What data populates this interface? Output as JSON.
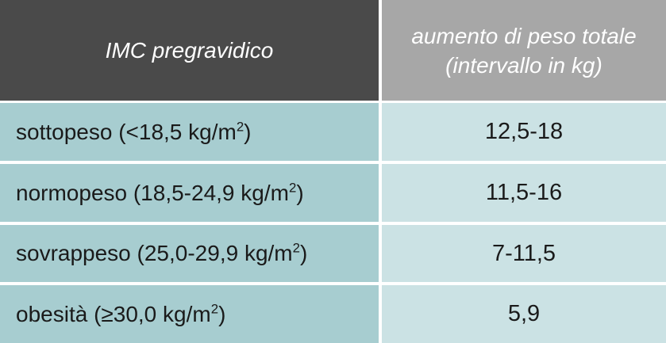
{
  "table": {
    "header": {
      "col1": "IMC pregravidico",
      "col2_line1": "aumento di peso totale",
      "col2_line2": "(intervallo in kg)"
    },
    "rows": [
      {
        "label_pre": "sottopeso (<18,5 kg/m",
        "sup": "2",
        "label_post": ")",
        "value": "12,5-18"
      },
      {
        "label_pre": "normopeso (18,5-24,9 kg/m",
        "sup": "2",
        "label_post": ")",
        "value": "11,5-16"
      },
      {
        "label_pre": "sovrappeso (25,0-29,9 kg/m",
        "sup": "2",
        "label_post": ")",
        "value": "7-11,5"
      },
      {
        "label_pre": "obesità (≥30,0 kg/m",
        "sup": "2",
        "label_post": ")",
        "value": "5,9"
      }
    ]
  },
  "colors": {
    "header_left": "#4a4a4a",
    "header_right": "#a7a7a7",
    "body_left": "#a7cdd0",
    "body_right": "#cbe2e4"
  }
}
